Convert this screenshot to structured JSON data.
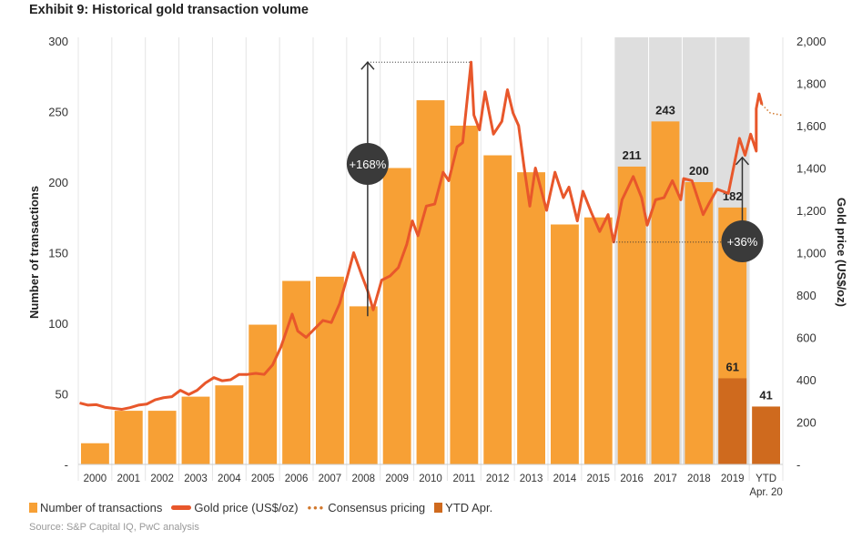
{
  "title": "Exhibit 9: Historical gold transaction volume",
  "source": "Source: S&P Capital IQ, PwC analysis",
  "colors": {
    "bar": "#f7a035",
    "bar_ytd": "#cf6a1e",
    "line": "#e8572b",
    "shade": "#dedede",
    "bubble": "#3a3a3a"
  },
  "chart_data": {
    "type": "bar+line",
    "title": "Exhibit 9: Historical gold transaction volume",
    "ylabel": "Number of transactions",
    "y2label": "Gold price (US$/oz)",
    "ylim": [
      0,
      300
    ],
    "y2lim": [
      0,
      2000
    ],
    "yticks": [
      "-",
      "50",
      "100",
      "150",
      "200",
      "250",
      "300"
    ],
    "y2ticks": [
      "-",
      "200",
      "400",
      "600",
      "800",
      "1,000",
      "1,200",
      "1,400",
      "1,600",
      "1,800",
      "2,000"
    ],
    "categories": [
      "2000",
      "2001",
      "2002",
      "2003",
      "2004",
      "2005",
      "2006",
      "2007",
      "2008",
      "2009",
      "2010",
      "2011",
      "2012",
      "2013",
      "2014",
      "2015",
      "2016",
      "2017",
      "2018",
      "2019",
      "YTD"
    ],
    "category_sublabel": {
      "YTD": "Apr. 20"
    },
    "shaded_categories": [
      "2016",
      "2017",
      "2018",
      "2019"
    ],
    "series": [
      {
        "name": "Number of transactions",
        "type": "bar",
        "values": [
          15,
          38,
          38,
          48,
          56,
          99,
          130,
          133,
          112,
          210,
          258,
          240,
          219,
          207,
          170,
          175,
          211,
          243,
          200,
          182,
          null
        ]
      },
      {
        "name": "YTD Apr.",
        "type": "bar",
        "values": [
          null,
          null,
          null,
          null,
          null,
          null,
          null,
          null,
          null,
          null,
          null,
          null,
          null,
          null,
          null,
          null,
          null,
          null,
          null,
          61,
          41
        ]
      },
      {
        "name": "Gold price (US$/oz)",
        "type": "line",
        "axis": "right",
        "points": [
          [
            "2000-01",
            290
          ],
          [
            "2000-04",
            280
          ],
          [
            "2000-07",
            282
          ],
          [
            "2000-10",
            270
          ],
          [
            "2001-01",
            265
          ],
          [
            "2001-04",
            260
          ],
          [
            "2001-07",
            268
          ],
          [
            "2001-10",
            280
          ],
          [
            "2002-01",
            285
          ],
          [
            "2002-04",
            305
          ],
          [
            "2002-07",
            315
          ],
          [
            "2002-10",
            320
          ],
          [
            "2003-01",
            350
          ],
          [
            "2003-04",
            330
          ],
          [
            "2003-07",
            350
          ],
          [
            "2003-10",
            385
          ],
          [
            "2004-01",
            410
          ],
          [
            "2004-04",
            395
          ],
          [
            "2004-07",
            400
          ],
          [
            "2004-10",
            425
          ],
          [
            "2005-01",
            425
          ],
          [
            "2005-04",
            430
          ],
          [
            "2005-07",
            425
          ],
          [
            "2005-10",
            470
          ],
          [
            "2006-01",
            555
          ],
          [
            "2006-05",
            710
          ],
          [
            "2006-07",
            630
          ],
          [
            "2006-10",
            600
          ],
          [
            "2007-01",
            640
          ],
          [
            "2007-04",
            680
          ],
          [
            "2007-07",
            670
          ],
          [
            "2007-10",
            760
          ],
          [
            "2008-01",
            900
          ],
          [
            "2008-03",
            1000
          ],
          [
            "2008-06",
            890
          ],
          [
            "2008-08",
            820
          ],
          [
            "2008-10",
            730
          ],
          [
            "2009-01",
            870
          ],
          [
            "2009-04",
            890
          ],
          [
            "2009-07",
            930
          ],
          [
            "2009-10",
            1040
          ],
          [
            "2009-12",
            1150
          ],
          [
            "2010-02",
            1080
          ],
          [
            "2010-05",
            1220
          ],
          [
            "2010-08",
            1230
          ],
          [
            "2010-11",
            1380
          ],
          [
            "2011-01",
            1340
          ],
          [
            "2011-04",
            1500
          ],
          [
            "2011-06",
            1520
          ],
          [
            "2011-09",
            1900
          ],
          [
            "2011-10",
            1650
          ],
          [
            "2011-12",
            1580
          ],
          [
            "2012-02",
            1760
          ],
          [
            "2012-05",
            1560
          ],
          [
            "2012-08",
            1620
          ],
          [
            "2012-10",
            1770
          ],
          [
            "2012-12",
            1660
          ],
          [
            "2013-02",
            1600
          ],
          [
            "2013-04",
            1400
          ],
          [
            "2013-06",
            1220
          ],
          [
            "2013-08",
            1400
          ],
          [
            "2013-12",
            1200
          ],
          [
            "2014-03",
            1380
          ],
          [
            "2014-06",
            1260
          ],
          [
            "2014-08",
            1310
          ],
          [
            "2014-11",
            1150
          ],
          [
            "2015-01",
            1290
          ],
          [
            "2015-04",
            1190
          ],
          [
            "2015-07",
            1100
          ],
          [
            "2015-10",
            1180
          ],
          [
            "2015-12",
            1050
          ],
          [
            "2016-03",
            1250
          ],
          [
            "2016-07",
            1360
          ],
          [
            "2016-10",
            1260
          ],
          [
            "2016-12",
            1130
          ],
          [
            "2017-03",
            1250
          ],
          [
            "2017-06",
            1260
          ],
          [
            "2017-09",
            1340
          ],
          [
            "2017-12",
            1250
          ],
          [
            "2018-01",
            1350
          ],
          [
            "2018-04",
            1340
          ],
          [
            "2018-08",
            1180
          ],
          [
            "2018-10",
            1230
          ],
          [
            "2019-01",
            1300
          ],
          [
            "2019-05",
            1280
          ],
          [
            "2019-09",
            1540
          ],
          [
            "2019-11",
            1460
          ],
          [
            "2020-01",
            1560
          ],
          [
            "2020-03",
            1480
          ],
          [
            "2020-03",
            1680
          ],
          [
            "2020-04",
            1750
          ],
          [
            "2020-05",
            1700
          ]
        ]
      },
      {
        "name": "Consensus pricing",
        "type": "line",
        "style": "dotted",
        "axis": "right",
        "points": [
          [
            "2020-05",
            1700
          ],
          [
            "2020-08",
            1660
          ],
          [
            "2020-12",
            1650
          ]
        ]
      }
    ],
    "data_labels": {
      "2016": "211",
      "2017": "243",
      "2018": "200",
      "2019": "182",
      "2019_ytd": "61",
      "YTD": "41"
    },
    "annotations": [
      {
        "label": "+168%",
        "from": [
          "2008-08",
          700
        ],
        "to": [
          "2008-08",
          1900
        ],
        "ref_line_to": "2011-09"
      },
      {
        "label": "+36%",
        "from": [
          "2019-10",
          1050
        ],
        "to": [
          "2019-10",
          1450
        ],
        "ref_line_from": "2015-12"
      }
    ],
    "grid": "vertical category separators",
    "legend_placement": "bottom-left"
  }
}
